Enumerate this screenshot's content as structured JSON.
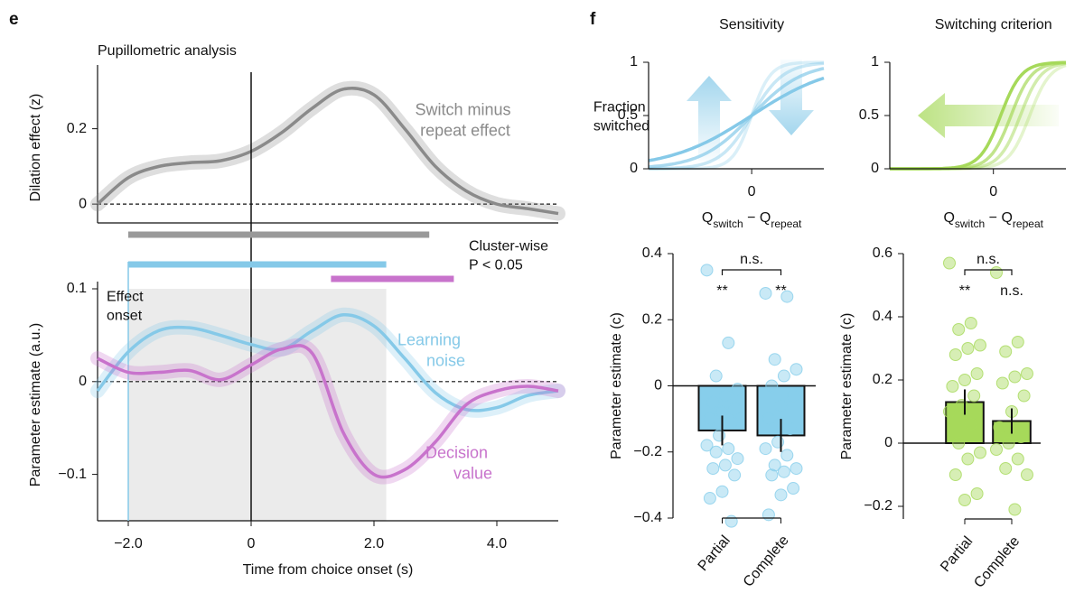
{
  "panels": [
    "e",
    "f"
  ],
  "chart_data": [
    {
      "type": "line",
      "title": "Pupillometric analysis",
      "ylabel": "Dilation effect (z)",
      "xlim": [
        -2.5,
        5
      ],
      "ylim": [
        -0.05,
        0.35
      ],
      "yticks": [
        0,
        0.2
      ],
      "refline": 0,
      "x": [
        -2.5,
        -2,
        -1.5,
        -1,
        -0.5,
        0,
        0.5,
        1,
        1.5,
        2,
        2.5,
        3,
        3.5,
        4,
        4.5,
        5
      ],
      "series": [
        {
          "name": "Switch minus repeat effect",
          "color": "#8a8a8a",
          "values": [
            0,
            0.07,
            0.1,
            0.11,
            0.115,
            0.14,
            0.19,
            0.255,
            0.305,
            0.29,
            0.2,
            0.1,
            0.035,
            0.0,
            -0.012,
            -0.025
          ]
        }
      ]
    },
    {
      "type": "line",
      "ylabel": "Parameter estimate (a.u.)",
      "xlabel": "Time from choice onset (s)",
      "xlim": [
        -2.5,
        5
      ],
      "ylim": [
        -0.15,
        0.1
      ],
      "yticks": [
        {
          "value": -0.1,
          "label": "−0.1"
        },
        0,
        0.1
      ],
      "xticks": [
        {
          "value": -2,
          "label": "−2.0"
        },
        0,
        {
          "value": 2,
          "label": "2.0"
        },
        {
          "value": 4,
          "label": "4.0"
        }
      ],
      "refline": 0,
      "vline": 0,
      "shade": [
        -2,
        2.2
      ],
      "onset": -2,
      "onset_label": "Effect onset",
      "x": [
        -2.5,
        -2,
        -1.5,
        -1,
        -0.5,
        0,
        0.5,
        1,
        1.5,
        2,
        2.5,
        3,
        3.5,
        4,
        4.5,
        5
      ],
      "series": [
        {
          "name": "Learning noise",
          "color": "#85c9e8",
          "values": [
            -0.01,
            0.032,
            0.055,
            0.058,
            0.05,
            0.04,
            0.035,
            0.055,
            0.072,
            0.06,
            0.025,
            -0.012,
            -0.03,
            -0.028,
            -0.015,
            -0.01
          ]
        },
        {
          "name": "Decision value",
          "color": "#c873cc",
          "values": [
            0.025,
            0.01,
            0.01,
            0.012,
            0.002,
            0.018,
            0.035,
            0.03,
            -0.055,
            -0.1,
            -0.095,
            -0.065,
            -0.025,
            -0.01,
            -0.005,
            -0.01
          ]
        }
      ],
      "clusters": [
        {
          "color": "#999999",
          "start": -2,
          "end": 2.9
        },
        {
          "color": "#85c9e8",
          "start": -2,
          "end": 2.2
        },
        {
          "color": "#c873cc",
          "start": 1.3,
          "end": 3.3
        }
      ],
      "cluster_label": "Cluster-wise P < 0.05"
    },
    {
      "type": "schematic",
      "title": "Sensitivity",
      "ylabel": "Fraction switched",
      "xlabel": [
        "Q",
        "switch",
        " − Q",
        "repeat"
      ],
      "color": "#85c9e8",
      "xlim": [
        -1,
        0.7
      ],
      "ylim": [
        0,
        1
      ],
      "yticks": [
        0,
        0.5,
        1
      ],
      "xticks": [
        0
      ]
    },
    {
      "type": "schematic",
      "title": "Switching criterion",
      "xlabel": [
        "Q",
        "switch",
        " − Q",
        "repeat"
      ],
      "color": "#a6d95a",
      "xlim": [
        -1,
        0.7
      ],
      "ylim": [
        0,
        1
      ],
      "yticks": [
        0,
        0.5,
        1
      ],
      "xticks": [
        0
      ]
    },
    {
      "type": "bar",
      "ylabel": "Parameter estimate (c)",
      "categories": [
        "Partial",
        "Complete"
      ],
      "values": [
        -0.135,
        -0.15
      ],
      "errors": [
        0.045,
        0.05
      ],
      "color": "#87ceeb",
      "points": [
        [
          0.35,
          0.13,
          0.03,
          -0.01,
          -0.03,
          -0.05,
          -0.07,
          -0.08,
          -0.1,
          -0.11,
          -0.15,
          -0.18,
          -0.19,
          -0.2,
          -0.22,
          -0.24,
          -0.25,
          -0.27,
          -0.32,
          -0.34,
          -0.41
        ],
        [
          0.28,
          0.27,
          0.08,
          0.05,
          0.03,
          0.0,
          -0.03,
          -0.06,
          -0.1,
          -0.13,
          -0.17,
          -0.19,
          -0.21,
          -0.24,
          -0.25,
          -0.26,
          -0.27,
          -0.31,
          -0.33,
          -0.39
        ]
      ],
      "stars": [
        "**",
        "**"
      ],
      "comparison": "n.s.",
      "ylim": [
        -0.4,
        0.4
      ],
      "yticks": [
        {
          "value": -0.4,
          "label": "−0.4"
        },
        {
          "value": -0.2,
          "label": "−0.2"
        },
        0,
        0.2,
        0.4
      ]
    },
    {
      "type": "bar",
      "ylabel": "Parameter estimate (c)",
      "categories": [
        "Partial",
        "Complete"
      ],
      "values": [
        0.13,
        0.07
      ],
      "errors": [
        0.04,
        0.04
      ],
      "color": "#a6d95a",
      "points": [
        [
          0.57,
          0.38,
          0.36,
          0.31,
          0.3,
          0.28,
          0.22,
          0.2,
          0.18,
          0.15,
          0.12,
          0.1,
          0.06,
          0.0,
          -0.03,
          -0.05,
          -0.1,
          -0.16,
          -0.18
        ],
        [
          0.54,
          0.32,
          0.29,
          0.22,
          0.21,
          0.19,
          0.15,
          0.1,
          0.05,
          0.02,
          0.0,
          -0.02,
          -0.05,
          -0.08,
          -0.1,
          -0.21
        ]
      ],
      "stars": [
        "**",
        "n.s."
      ],
      "comparison": "n.s.",
      "ylim": [
        -0.24,
        0.6
      ],
      "yticks": [
        {
          "value": -0.2,
          "label": "−0.2"
        },
        0,
        0.2,
        0.4,
        0.6
      ]
    }
  ]
}
